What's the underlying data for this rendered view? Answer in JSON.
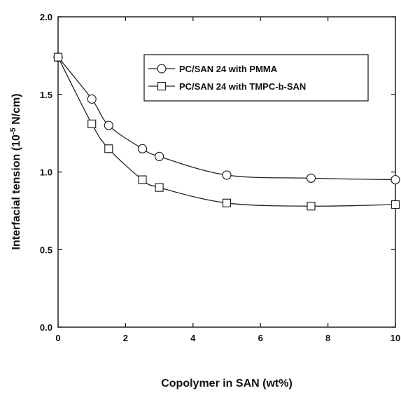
{
  "chart_data": {
    "type": "line",
    "title": "",
    "xlabel": "Copolymer in SAN (wt%)",
    "ylabel_main": "Interfacial tension (10",
    "ylabel_sup": "-5",
    "ylabel_tail": " N/cm)",
    "xlim": [
      0,
      10
    ],
    "ylim": [
      0,
      2.0
    ],
    "x_ticks": [
      0,
      2,
      4,
      6,
      8,
      10
    ],
    "x_tick_labels": [
      "0",
      "2",
      "4",
      "6",
      "8",
      "10"
    ],
    "y_ticks": [
      0,
      0.5,
      1.0,
      1.5,
      2.0
    ],
    "y_tick_labels": [
      "0.0",
      "0.5",
      "1.0",
      "1.5",
      "2.0"
    ],
    "grid": false,
    "legend_position": "top-right",
    "series": [
      {
        "name": "PC/SAN 24 with PMMA",
        "marker": "circle",
        "x": [
          0,
          1,
          1.5,
          2.5,
          3,
          5,
          7.5,
          10
        ],
        "y": [
          1.74,
          1.47,
          1.3,
          1.15,
          1.1,
          0.98,
          0.96,
          0.95
        ]
      },
      {
        "name": "PC/SAN 24 with TMPC-b-SAN",
        "marker": "square",
        "x": [
          0,
          1,
          1.5,
          2.5,
          3,
          5,
          7.5,
          10
        ],
        "y": [
          1.74,
          1.31,
          1.15,
          0.95,
          0.9,
          0.8,
          0.78,
          0.79
        ]
      }
    ]
  }
}
